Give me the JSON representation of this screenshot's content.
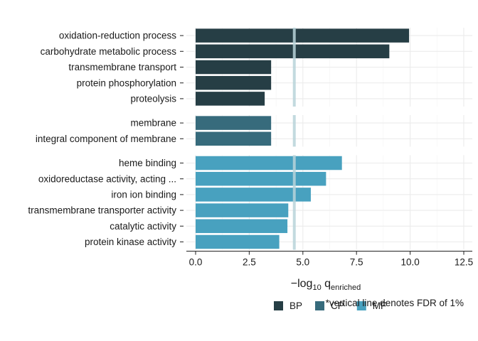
{
  "chart_data": {
    "type": "bar",
    "orientation": "horizontal",
    "facets": [
      {
        "name": "BP",
        "color": "#263e45",
        "categories": [
          "oxidation-reduction process",
          "carbohydrate metabolic process",
          "transmembrane transport",
          "protein phosphorylation",
          "proteolysis"
        ],
        "values": [
          9.95,
          9.03,
          3.52,
          3.52,
          3.22
        ]
      },
      {
        "name": "CP",
        "color": "#376b7c",
        "categories": [
          "membrane",
          "integral component of membrane"
        ],
        "values": [
          3.52,
          3.52
        ]
      },
      {
        "name": "MF",
        "color": "#48a1bf",
        "categories": [
          "heme binding",
          "oxidoreductase activity, acting ...",
          "iron ion binding",
          "transmembrane transporter activity",
          "catalytic activity",
          "protein kinase activity"
        ],
        "values": [
          6.82,
          6.08,
          5.37,
          4.32,
          4.28,
          3.9
        ]
      }
    ],
    "xlabel": {
      "main": "−log",
      "sub10": "10",
      "q": " q",
      "subscript": "enriched"
    },
    "xlim": [
      0,
      12.5
    ],
    "xticks": [
      0.0,
      2.5,
      5.0,
      7.5,
      10.0,
      12.5
    ],
    "xtick_labels": [
      "0.0",
      "2.5",
      "5.0",
      "7.5",
      "10.0",
      "12.5"
    ],
    "threshold": 4.6,
    "threshold_color": "#b9d3d9",
    "legend": {
      "position": "bottom",
      "entries": [
        "BP",
        "CP",
        "MF"
      ]
    },
    "footnote": "*vertical line denotes FDR of 1%",
    "grid": true
  }
}
